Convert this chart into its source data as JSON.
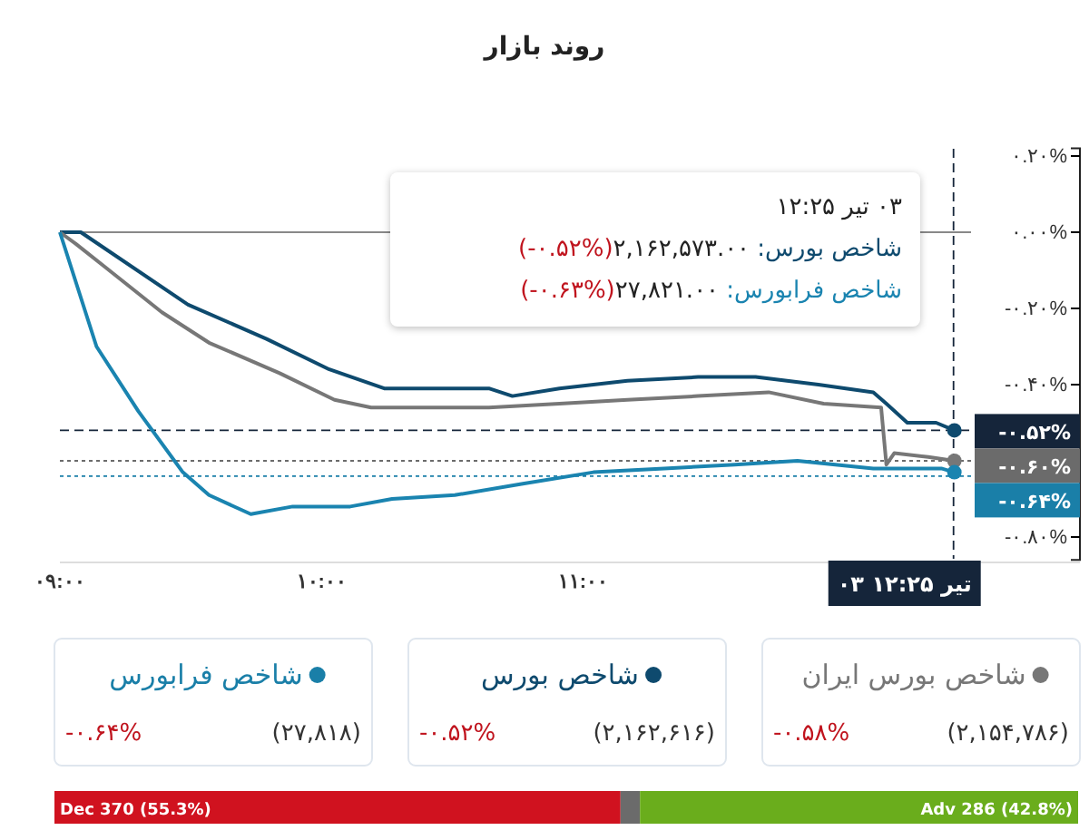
{
  "chart_data": [
    {
      "type": "line",
      "title": "روند بازار",
      "xlim": [
        9,
        12.9
      ],
      "ylim": [
        -0.86,
        0.22
      ],
      "xticks": [
        {
          "value": 9,
          "label": "۰۹:۰۰"
        },
        {
          "value": 10,
          "label": "۱۰:۰۰"
        },
        {
          "value": 11,
          "label": "۱۱:۰۰"
        }
      ],
      "yticks": [
        {
          "value": 0.2,
          "label": "۰.۲۰%"
        },
        {
          "value": 0,
          "label": "۰.۰۰%"
        },
        {
          "value": -0.2,
          "label": "-۰.۲۰%"
        },
        {
          "value": -0.4,
          "label": "-۰.۴۰%"
        },
        {
          "value": -0.8,
          "label": "-۰.۸۰%"
        }
      ],
      "series": [
        {
          "color": "#0e4a6e",
          "x": [
            9,
            9.08,
            9.49,
            9.79,
            10.03,
            10.24,
            10.64,
            10.73,
            10.91,
            11.17,
            11.44,
            11.66,
            11.9,
            12.11,
            12.16,
            12.24,
            12.35,
            12.42
          ],
          "values": [
            0,
            0,
            -0.19,
            -0.28,
            -0.36,
            -0.41,
            -0.41,
            -0.43,
            -0.41,
            -0.39,
            -0.38,
            -0.38,
            -0.4,
            -0.42,
            -0.45,
            -0.5,
            -0.5,
            -0.52
          ]
        },
        {
          "color": "#777777",
          "x": [
            9,
            9.06,
            9.17,
            9.39,
            9.57,
            9.84,
            10.05,
            10.19,
            10.64,
            10.91,
            11.17,
            11.44,
            11.71,
            11.92,
            12.14,
            12.16,
            12.19,
            12.32,
            12.42
          ],
          "values": [
            0,
            -0.03,
            -0.09,
            -0.21,
            -0.29,
            -0.37,
            -0.44,
            -0.46,
            -0.46,
            -0.45,
            -0.44,
            -0.43,
            -0.42,
            -0.45,
            -0.46,
            -0.61,
            -0.58,
            -0.59,
            -0.6
          ]
        },
        {
          "color": "#1a84b0",
          "x": [
            9,
            9.14,
            9.3,
            9.47,
            9.57,
            9.73,
            9.89,
            10.11,
            10.27,
            10.51,
            10.77,
            11.04,
            11.31,
            11.58,
            11.82,
            12.11,
            12.37,
            12.42
          ],
          "values": [
            0,
            -0.3,
            -0.47,
            -0.63,
            -0.69,
            -0.74,
            -0.72,
            -0.72,
            -0.7,
            -0.69,
            -0.66,
            -0.63,
            -0.62,
            -0.61,
            -0.6,
            -0.62,
            -0.62,
            -0.63
          ]
        }
      ],
      "ref_lines": [
        {
          "axis": "y",
          "value": 0,
          "color": "#888888",
          "line_style": "solid"
        },
        {
          "axis": "y",
          "value": -0.52,
          "label": "-۰.۵۲%",
          "color": "#15253a",
          "line_style": "dashed"
        },
        {
          "axis": "y",
          "value": -0.6,
          "label": "-۰.۶۰%",
          "color": "#6b6b6b",
          "line_style": "dotted"
        },
        {
          "axis": "y",
          "value": -0.64,
          "label": "-۰.۶۴%",
          "color": "#1a7fa8",
          "line_style": "dotted"
        },
        {
          "axis": "x",
          "value": 12.4167,
          "label": "۰۳ تیر ۱۲:۲۵",
          "color": "#15253a",
          "line_style": "dashed"
        }
      ],
      "annotations": [
        "۰۳ تیر ۱۲:۲۵",
        "شاخص بورس: ۲,۱۶۲,۵۷۳.۰۰(-۰.۵۲%)",
        "شاخص فرابورس: ۲۷,۸۲۱.۰۰(-۰.۶۳%)"
      ]
    },
    {
      "type": "other",
      "categories": [
        "شاخص فرابورس",
        "شاخص بورس",
        "شاخص بورس ایران"
      ],
      "colors": [
        "#1a7fa8",
        "#0e4a6e",
        "#777777"
      ],
      "series": [
        {
          "values": [
            27818,
            2162616,
            2154786
          ],
          "value_labels": [
            "(۲۷,۸۱۸)",
            "(۲,۱۶۲,۶۱۶)",
            "(۲,۱۵۴,۷۸۶)"
          ]
        },
        {
          "color": "#c0141e",
          "values": [
            -0.64,
            -0.52,
            -0.58
          ],
          "value_labels": [
            "-۰.۶۴%",
            "-۰.۵۲%",
            "-۰.۵۸%"
          ]
        }
      ]
    },
    {
      "type": "bar",
      "orientation": "horizontal",
      "stacked": true,
      "categories": [
        null
      ],
      "series": [
        {
          "color": "#d0121f",
          "values": [
            55.3
          ],
          "value_labels": [
            "Dec 370 (55.3%)"
          ]
        },
        {
          "color": "#6b6b6b",
          "values": [
            1.9
          ]
        },
        {
          "color": "#6aad1c",
          "values": [
            42.8
          ],
          "value_labels": [
            "Adv 286 (42.8%)"
          ]
        }
      ]
    }
  ]
}
